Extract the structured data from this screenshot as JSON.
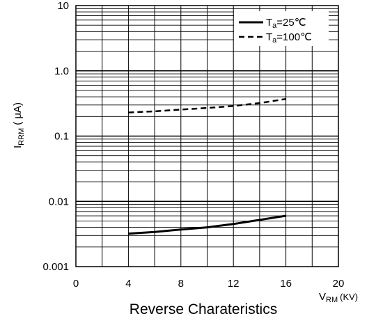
{
  "chart_data": {
    "type": "line",
    "title": "Reverse Charateristics",
    "xlabel": "V_RM (KV)",
    "ylabel": "I_RRM (μA)",
    "xlim": [
      0,
      20
    ],
    "ylim": [
      0.001,
      10
    ],
    "yscale": "log",
    "grid": true,
    "legend": "top-right",
    "x_ticks": [
      "0",
      "4",
      "8",
      "12",
      "16",
      "20"
    ],
    "y_ticks": [
      "10",
      "1.0",
      "0.1",
      "0.01",
      "0.001"
    ],
    "series": [
      {
        "name": "Ta=25℃",
        "style": "solid",
        "x": [
          4,
          6,
          8,
          10,
          12,
          14,
          16
        ],
        "y": [
          0.0032,
          0.0034,
          0.0037,
          0.004,
          0.0045,
          0.0052,
          0.006
        ]
      },
      {
        "name": "Ta=100℃",
        "style": "dashed",
        "x": [
          4,
          6,
          8,
          10,
          12,
          14,
          16
        ],
        "y": [
          0.23,
          0.24,
          0.255,
          0.27,
          0.29,
          0.32,
          0.37
        ]
      }
    ]
  },
  "labels": {
    "ylabel_main": "I",
    "ylabel_sub": "RRM",
    "ylabel_unit": "( μA)",
    "xlabel_main": "V",
    "xlabel_sub": "RM",
    "xlabel_unit": "(KV)",
    "legend_25_main": "T",
    "legend_25_sub": "a",
    "legend_25_rest": "=25℃",
    "legend_100_main": "T",
    "legend_100_sub": "a",
    "legend_100_rest": "=100℃"
  },
  "colors": {
    "line": "#000000",
    "grid": "#000000"
  }
}
